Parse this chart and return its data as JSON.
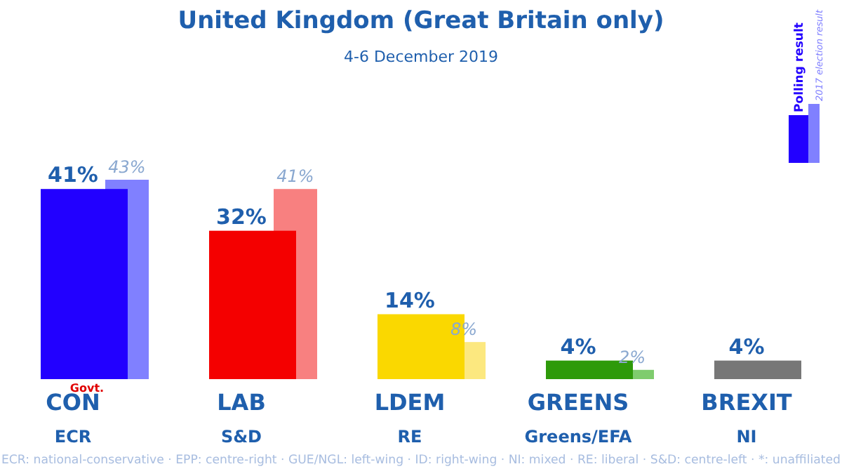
{
  "chart_data": {
    "type": "bar",
    "title": "United Kingdom (Great Britain only)",
    "subtitle": "4-6 December 2019",
    "categories": [
      "CON\nECR",
      "LAB\nS&D",
      "LDEM\nRE",
      "GREENS\nGreens/EFA",
      "BREXIT\nNI"
    ],
    "series": [
      {
        "name": "Polling result",
        "colors": [
          "#2200ff",
          "#f40000",
          "#fad800",
          "#2e9a0a",
          "#777777"
        ],
        "values": [
          41,
          32,
          14,
          4,
          4
        ],
        "value_labels": [
          "41%",
          "32%",
          "14%",
          "4%",
          "4%"
        ]
      },
      {
        "name": "2017 election result",
        "colors": [
          "#8080ff",
          "#f88080",
          "#fce87f",
          "#7fcc6e",
          null
        ],
        "values": [
          43,
          41,
          8,
          2,
          null
        ],
        "value_labels": [
          "43%",
          "41%",
          "8%",
          "2%",
          null
        ]
      }
    ],
    "tick_labels": "x",
    "legend": "top right",
    "annotations": [
      "Govt.",
      "ECR: national-conservative · EPP: centre-right · GUE/NGL: left-wing · ID: right-wing · NI: mixed · RE: liberal · S&D: centre-left · *: unaffiliated"
    ]
  }
}
